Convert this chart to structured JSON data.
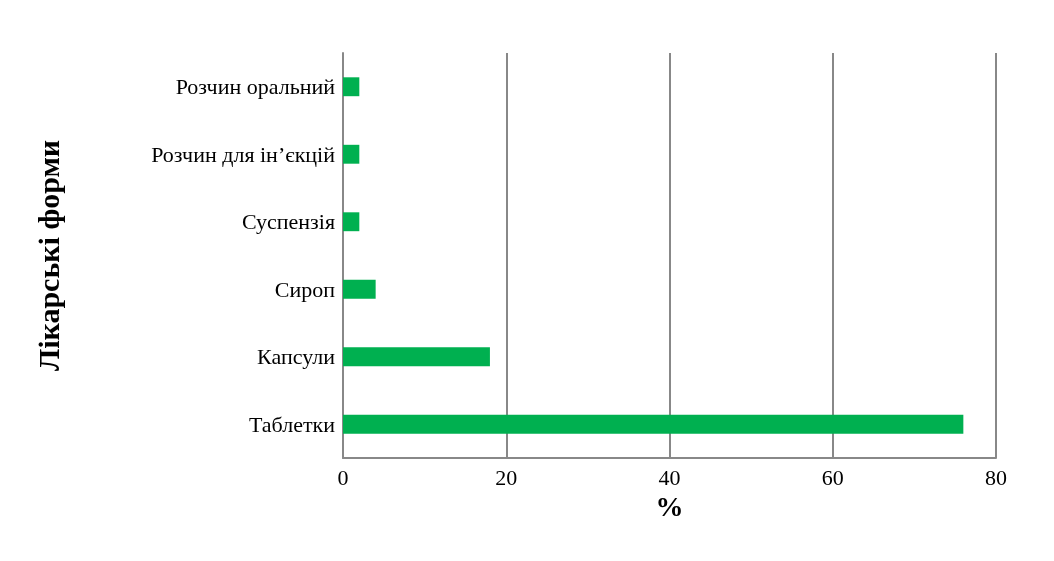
{
  "chart_data": {
    "type": "bar",
    "orientation": "horizontal",
    "xlabel": "%",
    "ylabel": "Лікарські форми",
    "categories": [
      "Розчин оральний",
      "Розчин для ін’єкцій",
      "Суспензія",
      "Сироп",
      "Капсули",
      "Таблетки"
    ],
    "values": [
      2,
      2,
      2,
      4,
      18,
      76
    ],
    "color": "#00b050",
    "xlim": [
      0,
      80
    ],
    "xticks": [
      0,
      20,
      40,
      60,
      80
    ],
    "grid": "x"
  }
}
